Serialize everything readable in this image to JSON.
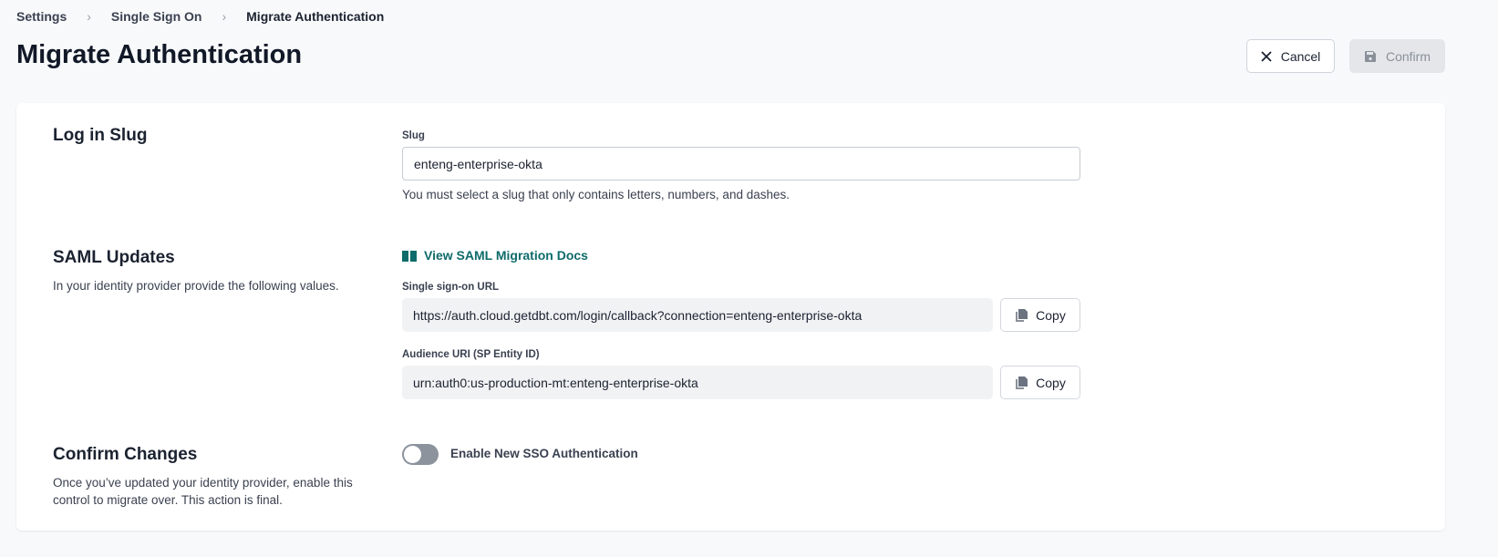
{
  "breadcrumb": [
    "Settings",
    "Single Sign On",
    "Migrate Authentication"
  ],
  "page_title": "Migrate Authentication",
  "actions": {
    "cancel": "Cancel",
    "confirm": "Confirm"
  },
  "slug_section": {
    "title": "Log in Slug",
    "field_label": "Slug",
    "value": "enteng-enterprise-okta",
    "help": "You must select a slug that only contains letters, numbers, and dashes."
  },
  "saml_section": {
    "title": "SAML Updates",
    "description": "In your identity provider provide the following values.",
    "docs_link": "View SAML Migration Docs",
    "sso_url_label": "Single sign-on URL",
    "sso_url": "https://auth.cloud.getdbt.com/login/callback?connection=enteng-enterprise-okta",
    "audience_label": "Audience URI (SP Entity ID)",
    "audience": "urn:auth0:us-production-mt:enteng-enterprise-okta",
    "copy": "Copy"
  },
  "confirm_section": {
    "title": "Confirm Changes",
    "description_line1": "Once you’ve updated your identity provider, enable this",
    "description_line2": "control to migrate over. This action is final.",
    "toggle_label": "Enable New SSO Authentication",
    "toggle_on": false
  },
  "colors": {
    "link": "#0e6b6b",
    "toggle_off": "#8c939d"
  }
}
